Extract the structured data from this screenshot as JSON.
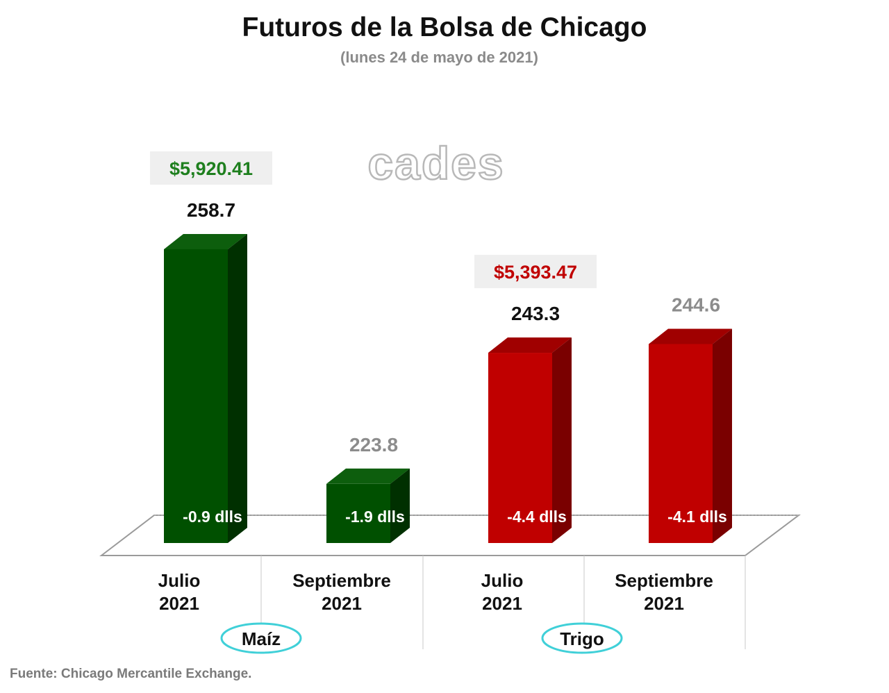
{
  "title": "Futuros de la Bolsa de Chicago",
  "subtitle": "(lunes 24 de mayo de 2021)",
  "watermark": "cades",
  "source": "Fuente: Chicago Mercantile Exchange.",
  "colors": {
    "green_front": "#005000",
    "green_side": "#003000",
    "green_top": "#0d5e0d",
    "red_front": "#c00000",
    "red_side": "#7a0000",
    "red_top": "#a00000",
    "value_dark": "#111111",
    "value_gray": "#8c8c8c",
    "green_text": "#1e7f1e",
    "red_text": "#c00000",
    "oval": "#40d0d8"
  },
  "chart_data": {
    "type": "bar",
    "ylim": [
      215,
      262
    ],
    "grid": false,
    "groups": [
      {
        "name": "Maíz",
        "price_tag": "$5,920.41",
        "bars": [
          {
            "label_line1": "Julio",
            "label_line2": "2021",
            "value": 258.7,
            "value_label": "258.7",
            "change": "-0.9 dlls"
          },
          {
            "label_line1": "Septiembre",
            "label_line2": "2021",
            "value": 223.8,
            "value_label": "223.8",
            "change": "-1.9 dlls"
          }
        ]
      },
      {
        "name": "Trigo",
        "price_tag": "$5,393.47",
        "bars": [
          {
            "label_line1": "Julio",
            "label_line2": "2021",
            "value": 243.3,
            "value_label": "243.3",
            "change": "-4.4 dlls"
          },
          {
            "label_line1": "Septiembre",
            "label_line2": "2021",
            "value": 244.6,
            "value_label": "244.6",
            "change": "-4.1 dlls"
          }
        ]
      }
    ]
  }
}
